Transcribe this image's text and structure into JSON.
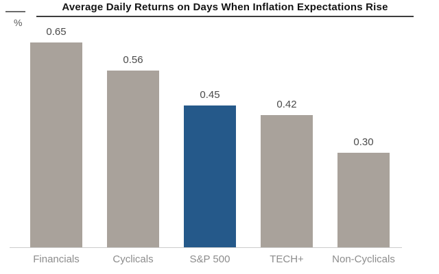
{
  "header": {
    "y_axis_unit": "%"
  },
  "chart_data": {
    "type": "bar",
    "title": "Average Daily Returns on Days When Inflation Expectations Rise",
    "categories": [
      "Financials",
      "Cyclicals",
      "S&P 500",
      "TECH+",
      "Non-Cyclicals"
    ],
    "values": [
      0.65,
      0.56,
      0.45,
      0.42,
      0.3
    ],
    "value_labels": [
      "0.65",
      "0.56",
      "0.45",
      "0.42",
      "0.30"
    ],
    "xlabel": "",
    "ylabel": "%",
    "ylim": [
      0,
      0.75
    ],
    "grid": false,
    "legend": null,
    "highlight_index": 2,
    "colors": {
      "bar_default": "#a9a29b",
      "bar_highlight": "#25598a",
      "value_label": "#4a4a4a",
      "category_label": "#8c8c8c",
      "title_text": "#141414",
      "title_underline": "#3c3c3c",
      "axis_line": "#cccccc"
    }
  }
}
